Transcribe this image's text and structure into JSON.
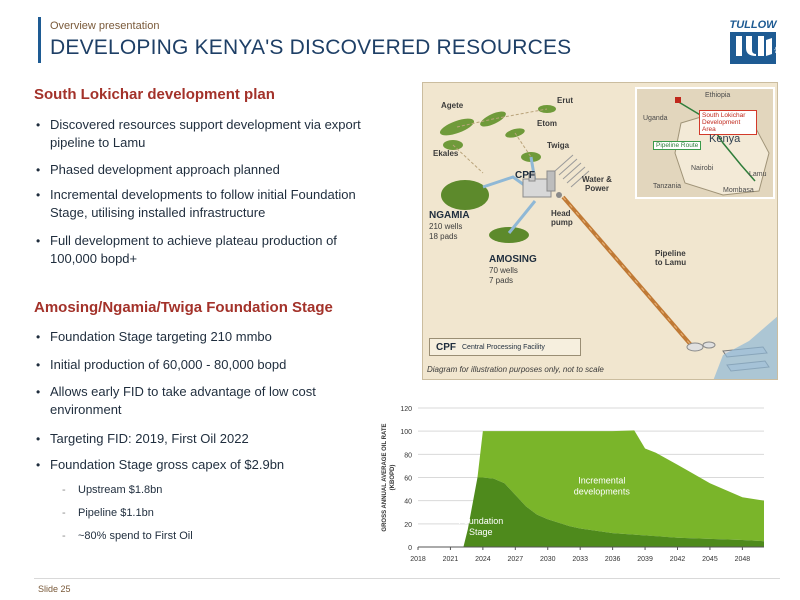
{
  "header": {
    "kicker": "Overview presentation",
    "title": "DEVELOPING KENYA'S DISCOVERED RESOURCES",
    "logo_text": "TULLOW",
    "logo_suffix": "plc"
  },
  "section1": {
    "heading": "South Lokichar development plan",
    "bullets": [
      "Discovered resources support development via export pipeline to Lamu",
      "Phased development approach planned",
      "Incremental developments to follow initial Foundation Stage, utilising installed infrastructure",
      "Full development to achieve plateau production of 100,000 bopd+"
    ]
  },
  "section2": {
    "heading": "Amosing/Ngamia/Twiga Foundation Stage",
    "bullets": [
      "Foundation Stage targeting 210 mmbo",
      "Initial production of 60,000 - 80,000 bopd",
      "Allows early FID to take advantage of low cost environment",
      "Targeting FID: 2019, First Oil 2022",
      "Foundation Stage gross capex of $2.9bn"
    ],
    "sub_bullets": [
      "Upstream $1.8bn",
      "Pipeline $1.1bn",
      "~80% spend to First Oil"
    ]
  },
  "map": {
    "fields": {
      "agete": "Agete",
      "erut": "Erut",
      "etom": "Etom",
      "twiga": "Twiga",
      "ekales": "Ekales"
    },
    "cpf": "CPF",
    "water_power": "Water & Power",
    "head_pump": "Head pump",
    "ngamia_name": "NGAMIA",
    "ngamia_wells": "210 wells",
    "ngamia_pads": "18 pads",
    "amosing_name": "AMOSING",
    "amosing_wells": "70 wells",
    "amosing_pads": "7 pads",
    "pipeline_label": "Pipeline to Lamu",
    "legend_key": "CPF",
    "legend_value": "Central Processing Facility",
    "note": "Diagram for illustration purposes only, not to scale",
    "inset": {
      "ethiopia": "Ethiopia",
      "uganda": "Uganda",
      "kenya": "Kenya",
      "nairobi": "Nairobi",
      "lamu": "Lamu",
      "tanzania": "Tanzania",
      "mombasa": "Mombasa",
      "lokichar_area": "South Lokichar Development Area",
      "pipeline_route": "Pipeline Route"
    }
  },
  "chart_data": {
    "type": "area",
    "ylabel": "GROSS ANNUAL AVERAGE OIL RATE (KBOPD)",
    "ylim": [
      0,
      120
    ],
    "yticks": [
      0,
      20,
      40,
      60,
      80,
      100,
      120
    ],
    "xlim": [
      2018,
      2050
    ],
    "xticks": [
      2018,
      2021,
      2024,
      2027,
      2030,
      2033,
      2036,
      2039,
      2042,
      2045,
      2048
    ],
    "grid": true,
    "series": [
      {
        "name": "Foundation Stage",
        "color": "#4e8a1c",
        "x": [
          2018,
          2019,
          2021,
          2022.2,
          2022.6,
          2023.5,
          2024,
          2025,
          2026,
          2027,
          2028,
          2029,
          2030,
          2032,
          2033,
          2036,
          2039,
          2042,
          2045,
          2048,
          2050
        ],
        "y": [
          0,
          0,
          0,
          0,
          15,
          60,
          60,
          59,
          55,
          45,
          35,
          28,
          24,
          18,
          16,
          12,
          10,
          8,
          7,
          6,
          5
        ]
      },
      {
        "name": "Incremental developments",
        "color": "#7ab52a",
        "x": [
          2018,
          2019,
          2021,
          2022.2,
          2022.6,
          2023.5,
          2024,
          2025,
          2026,
          2027,
          2028,
          2029,
          2030,
          2032,
          2033,
          2036,
          2038,
          2039,
          2040,
          2042,
          2043,
          2045,
          2048,
          2050
        ],
        "y": [
          0,
          0,
          0,
          0,
          0,
          0,
          40,
          41,
          45,
          55,
          65,
          72,
          76,
          82,
          84,
          88,
          90,
          75,
          72,
          63,
          58,
          48,
          37,
          35
        ]
      }
    ],
    "annotations": [
      "Foundation Stage",
      "Incremental developments"
    ]
  },
  "footer": {
    "slide_number": "Slide 25"
  },
  "colors": {
    "title_blue": "#1e3f66",
    "heading_red": "#a3322a",
    "foundation_green": "#4e8a1c",
    "incremental_green": "#7ab52a",
    "map_background": "#f1e6cf"
  }
}
